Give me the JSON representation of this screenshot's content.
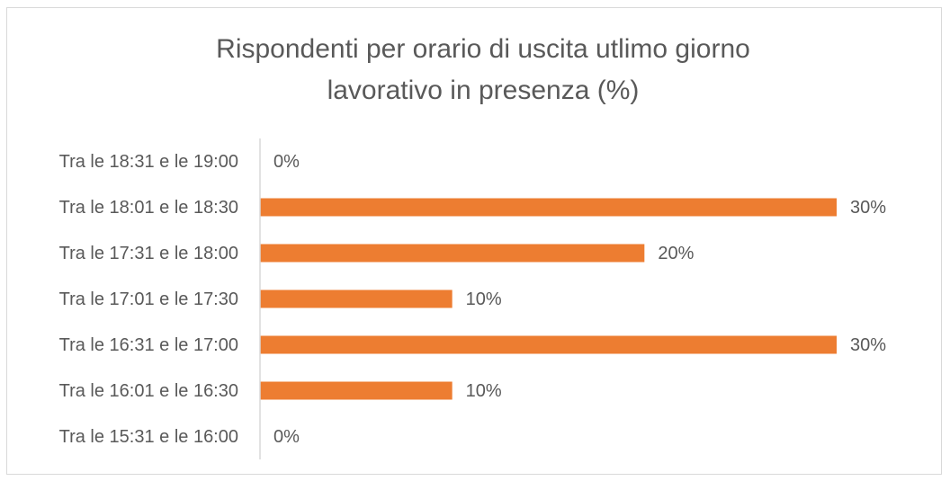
{
  "chart_data": {
    "type": "barh",
    "title": "Rispondenti per orario di uscita utlimo giorno lavorativo in presenza (%)",
    "categories": [
      "Tra le 18:31 e le 19:00",
      "Tra le 18:01 e le 18:30",
      "Tra le 17:31 e le 18:00",
      "Tra le 17:01 e le 17:30",
      "Tra le 16:31 e le 17:00",
      "Tra le 16:01 e le 16:30",
      "Tra le 15:31 e le 16:00"
    ],
    "values": [
      0,
      30,
      20,
      10,
      30,
      10,
      0
    ],
    "value_labels": [
      "0%",
      "30%",
      "20%",
      "10%",
      "30%",
      "10%",
      "0%"
    ],
    "color": "#ED7D31"
  }
}
